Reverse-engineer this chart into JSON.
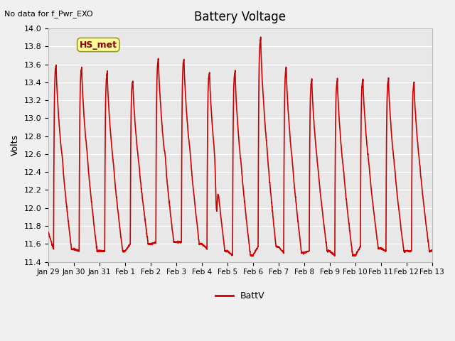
{
  "title": "Battery Voltage",
  "top_left_note": "No data for f_Pwr_EXO",
  "ylabel": "Volts",
  "legend_label": "BattV",
  "line_color": "#cc0000",
  "line_width": 1.2,
  "fig_bg_color": "#f0f0f0",
  "plot_bg_color": "#e8e8e8",
  "grid_color": "#ffffff",
  "ylim": [
    11.4,
    14.0
  ],
  "yticks": [
    11.4,
    11.6,
    11.8,
    12.0,
    12.2,
    12.4,
    12.6,
    12.8,
    13.0,
    13.2,
    13.4,
    13.6,
    13.8,
    14.0
  ],
  "xtick_labels": [
    "Jan 29",
    "Jan 30",
    "Jan 31",
    "Feb 1",
    "Feb 2",
    "Feb 3",
    "Feb 4",
    "Feb 5",
    "Feb 6",
    "Feb 7",
    "Feb 8",
    "Feb 9",
    "Feb 10",
    "Feb 11",
    "Feb 12",
    "Feb 13"
  ],
  "hs_met_label": "HS_met",
  "hs_met_box_color": "#ffff99",
  "hs_met_box_edge": "#999933",
  "hs_met_text_color": "#8b0000",
  "note_fontsize": 8,
  "title_fontsize": 12,
  "tick_fontsize": 8,
  "ylabel_fontsize": 9
}
